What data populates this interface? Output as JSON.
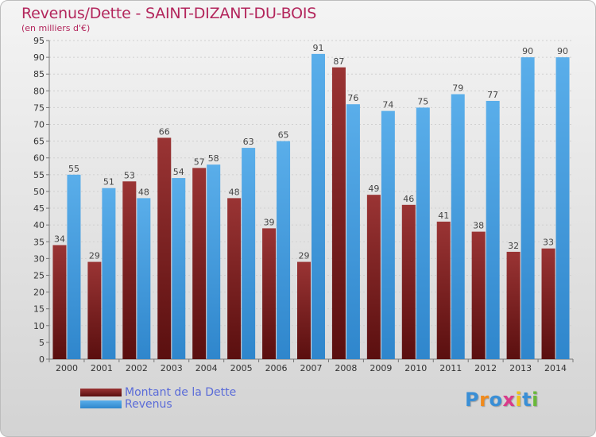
{
  "title": "Revenus/Dette - SAINT-DIZANT-DU-BOIS",
  "subtitle": "(en milliers d'€)",
  "legend": {
    "debt": "Montant de la Dette",
    "revenue": "Revenus"
  },
  "logo": "Proxiti",
  "colors": {
    "debt": "#8b2a2a",
    "revenue": "#4a9fe0",
    "title": "#b3265c",
    "legend_text": "#5a6bd8"
  },
  "chart_data": {
    "type": "bar",
    "title": "Revenus/Dette - SAINT-DIZANT-DU-BOIS",
    "subtitle": "(en milliers d'€)",
    "categories": [
      "2000",
      "2001",
      "2002",
      "2003",
      "2004",
      "2005",
      "2006",
      "2007",
      "2008",
      "2009",
      "2010",
      "2011",
      "2012",
      "2013",
      "2014"
    ],
    "series": [
      {
        "name": "Montant de la Dette",
        "values": [
          34,
          29,
          53,
          66,
          57,
          48,
          39,
          29,
          87,
          49,
          46,
          41,
          38,
          32,
          33
        ]
      },
      {
        "name": "Revenus",
        "values": [
          55,
          51,
          48,
          54,
          58,
          63,
          65,
          91,
          76,
          74,
          75,
          79,
          77,
          90,
          90
        ]
      }
    ],
    "ylim": [
      0,
      95
    ],
    "yticks": [
      0,
      5,
      10,
      15,
      20,
      25,
      30,
      35,
      40,
      45,
      50,
      55,
      60,
      65,
      70,
      75,
      80,
      85,
      90,
      95
    ],
    "grid": true,
    "legend_position": "bottom-left"
  }
}
